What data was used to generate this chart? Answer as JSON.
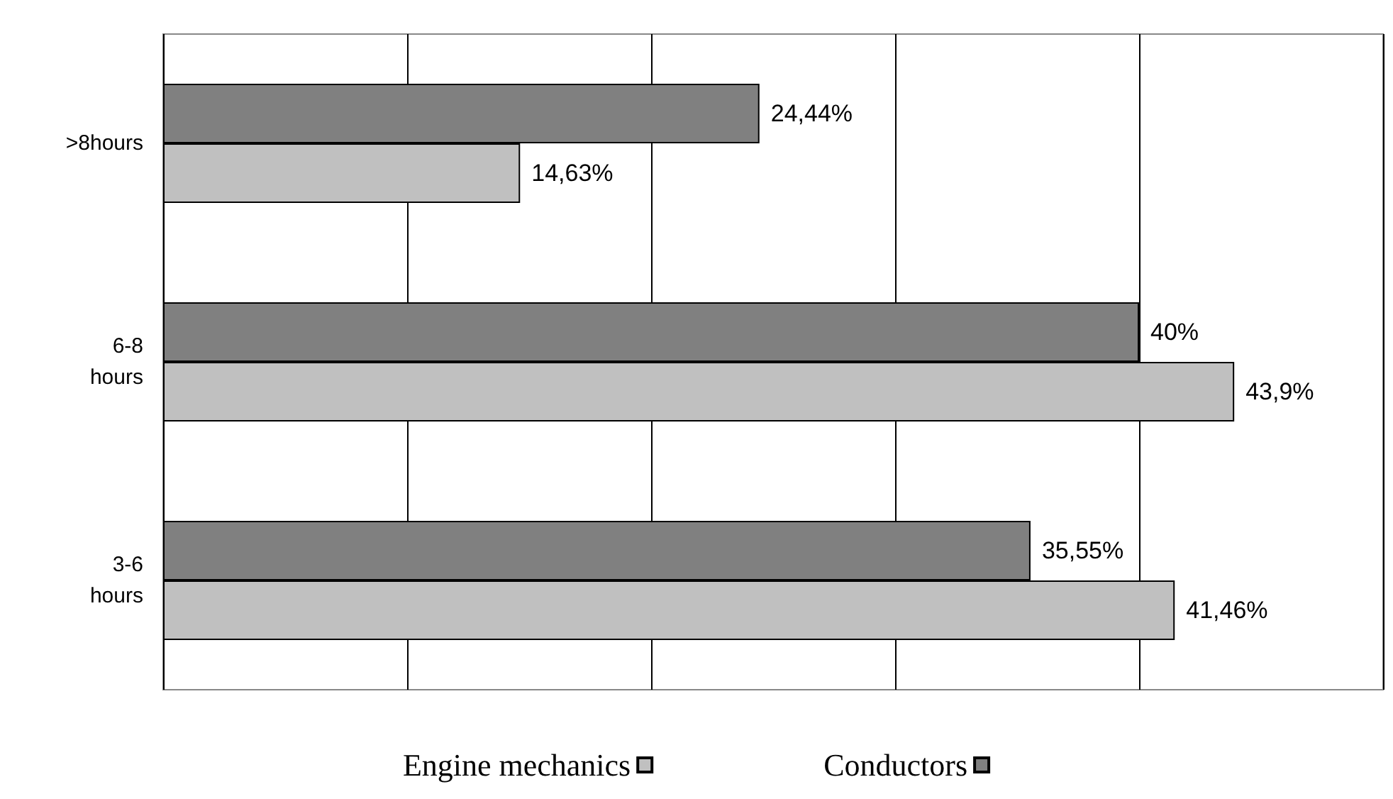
{
  "chart_data": {
    "type": "bar",
    "orientation": "horizontal",
    "categories": [
      ">8hours",
      "6-8 hours",
      "3-6 hours"
    ],
    "series": [
      {
        "name": "Conductors",
        "color": "#808080",
        "values": [
          24.44,
          40,
          35.55
        ],
        "value_labels": [
          "24,44%",
          "40%",
          "35,55%"
        ]
      },
      {
        "name": "Engine mechanics",
        "color": "#c0c0c0",
        "values": [
          14.63,
          43.9,
          41.46
        ],
        "value_labels": [
          "14,63%",
          "43,9%",
          "41,46%"
        ]
      }
    ],
    "xlim": [
      0,
      50
    ],
    "xticks": [
      {
        "value": 0,
        "label": null
      },
      {
        "value": 10,
        "label": null
      },
      {
        "value": 20,
        "label": null
      },
      {
        "value": 30,
        "label": null
      },
      {
        "value": 40,
        "label": null
      },
      {
        "value": 50,
        "label": null
      }
    ],
    "grid": "x",
    "legend": "bottom",
    "tick_labels": "y"
  }
}
